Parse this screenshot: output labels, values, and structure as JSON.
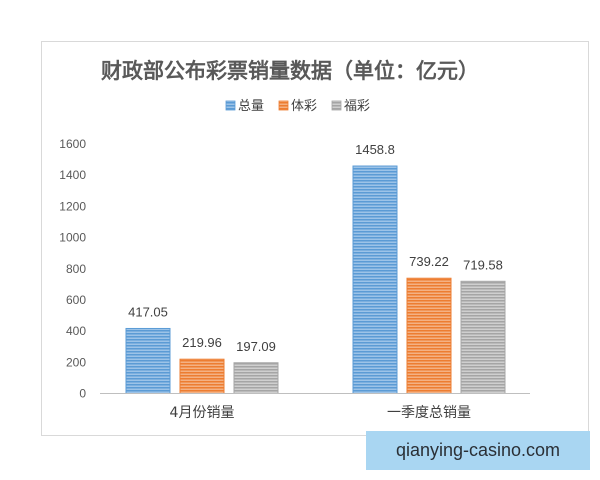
{
  "chart_data": {
    "type": "bar",
    "title": "财政部公布彩票销量数据（单位：亿元）",
    "categories": [
      "4月份销量",
      "一季度总销量"
    ],
    "series": [
      {
        "name": "总量",
        "values": [
          417.05,
          1458.8
        ],
        "labels": [
          "417.05",
          "1458.8"
        ],
        "color": "#5b9bd5"
      },
      {
        "name": "体彩",
        "values": [
          219.96,
          739.22
        ],
        "labels": [
          "219.96",
          "739.22"
        ],
        "color": "#ed7d31"
      },
      {
        "name": "福彩",
        "values": [
          197.09,
          719.58
        ],
        "labels": [
          "197.09",
          "719.58"
        ],
        "color": "#a5a5a5"
      }
    ],
    "y_ticks": [
      "0",
      "200",
      "400",
      "600",
      "800",
      "1000",
      "1200",
      "1400",
      "1600"
    ],
    "ylim": [
      0,
      1600
    ],
    "legend_position": "top",
    "grid": false
  },
  "watermark": {
    "text": "qianying-casino.com"
  }
}
